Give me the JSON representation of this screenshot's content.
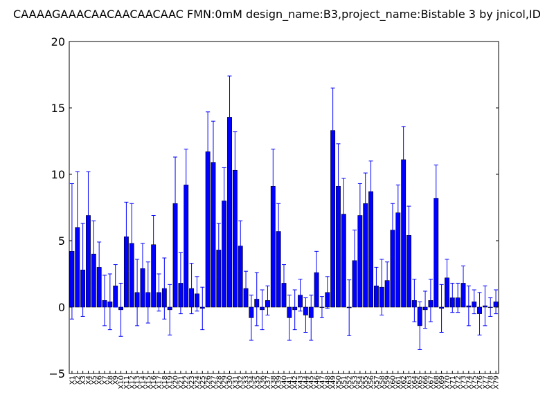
{
  "chart_data": {
    "type": "bar",
    "title": "CAAAAGAAACAACAACAACAAC  FMN:0mM  design_name:B3,project_name:Bistable 3 by jnicol,ID",
    "xlabel": "",
    "ylabel": "",
    "ylim": [
      -5,
      20
    ],
    "yticks": [
      "−5",
      "0",
      "5",
      "10",
      "15",
      "20"
    ],
    "grid": false,
    "categories": [
      "X1",
      "X2",
      "X3",
      "X4",
      "X5",
      "X6",
      "X7",
      "X8",
      "X9",
      "X10",
      "X11",
      "X12",
      "X13",
      "X14",
      "X15",
      "X16",
      "X17",
      "X18",
      "X19",
      "X20",
      "X21",
      "X22",
      "X23",
      "X24",
      "X25",
      "X26",
      "X27",
      "X28",
      "X29",
      "X30",
      "X31",
      "X32",
      "X33",
      "X34",
      "X35",
      "X36",
      "X37",
      "X38",
      "X39",
      "X40",
      "X41",
      "X42",
      "X43",
      "X44",
      "X45",
      "X46",
      "X47",
      "X48",
      "X49",
      "X50",
      "X51",
      "X52",
      "X53",
      "X54",
      "X55",
      "X56",
      "X57",
      "X58",
      "X59",
      "X60",
      "X61",
      "X62",
      "X63",
      "X64",
      "X65",
      "X66",
      "X67",
      "X68",
      "X69",
      "X70",
      "X71",
      "X72",
      "X73",
      "X74",
      "X75",
      "X76",
      "X77",
      "X78",
      "X79"
    ],
    "values": [
      4.2,
      6.0,
      2.8,
      6.9,
      4.0,
      3.0,
      0.5,
      0.4,
      1.6,
      -0.2,
      5.3,
      4.8,
      1.1,
      2.9,
      1.1,
      4.7,
      1.1,
      1.4,
      -0.2,
      7.8,
      1.8,
      9.2,
      1.4,
      1.0,
      -0.1,
      11.7,
      10.9,
      4.3,
      8.0,
      14.3,
      10.3,
      4.6,
      1.4,
      -0.8,
      0.6,
      -0.2,
      0.5,
      9.1,
      5.7,
      1.8,
      -0.8,
      -0.2,
      0.9,
      -0.6,
      -0.8,
      2.6,
      0.0,
      1.1,
      13.3,
      9.1,
      7.0,
      -0.05,
      3.5,
      6.9,
      7.8,
      8.7,
      1.6,
      1.5,
      2.0,
      5.8,
      7.1,
      11.1,
      5.4,
      0.5,
      -1.4,
      -0.2,
      0.5,
      8.2,
      -0.1,
      2.2,
      0.7,
      0.7,
      1.8,
      0.1,
      0.4,
      -0.5,
      0.1,
      0.0,
      0.4
    ],
    "errors": [
      5.1,
      4.2,
      3.5,
      3.3,
      2.5,
      1.9,
      1.9,
      2.1,
      1.6,
      2.0,
      2.6,
      3.0,
      2.5,
      1.9,
      2.3,
      2.2,
      1.4,
      2.3,
      1.9,
      3.5,
      2.3,
      2.7,
      1.9,
      1.3,
      1.6,
      3.0,
      3.1,
      2.0,
      2.5,
      3.1,
      2.9,
      1.9,
      1.3,
      1.7,
      2.0,
      1.5,
      1.1,
      2.8,
      2.1,
      1.4,
      1.7,
      1.5,
      1.2,
      1.3,
      1.7,
      1.6,
      0.8,
      1.2,
      3.2,
      3.2,
      2.7,
      2.1,
      2.3,
      2.4,
      2.3,
      2.3,
      1.4,
      2.1,
      1.4,
      2.0,
      2.1,
      2.5,
      2.2,
      1.6,
      1.8,
      1.4,
      1.6,
      2.5,
      1.8,
      1.4,
      1.1,
      1.1,
      1.3,
      1.5,
      0.9,
      1.6,
      1.5,
      0.7,
      0.9
    ],
    "bar_color": "#0000ff",
    "error_color": "#0000ff"
  }
}
